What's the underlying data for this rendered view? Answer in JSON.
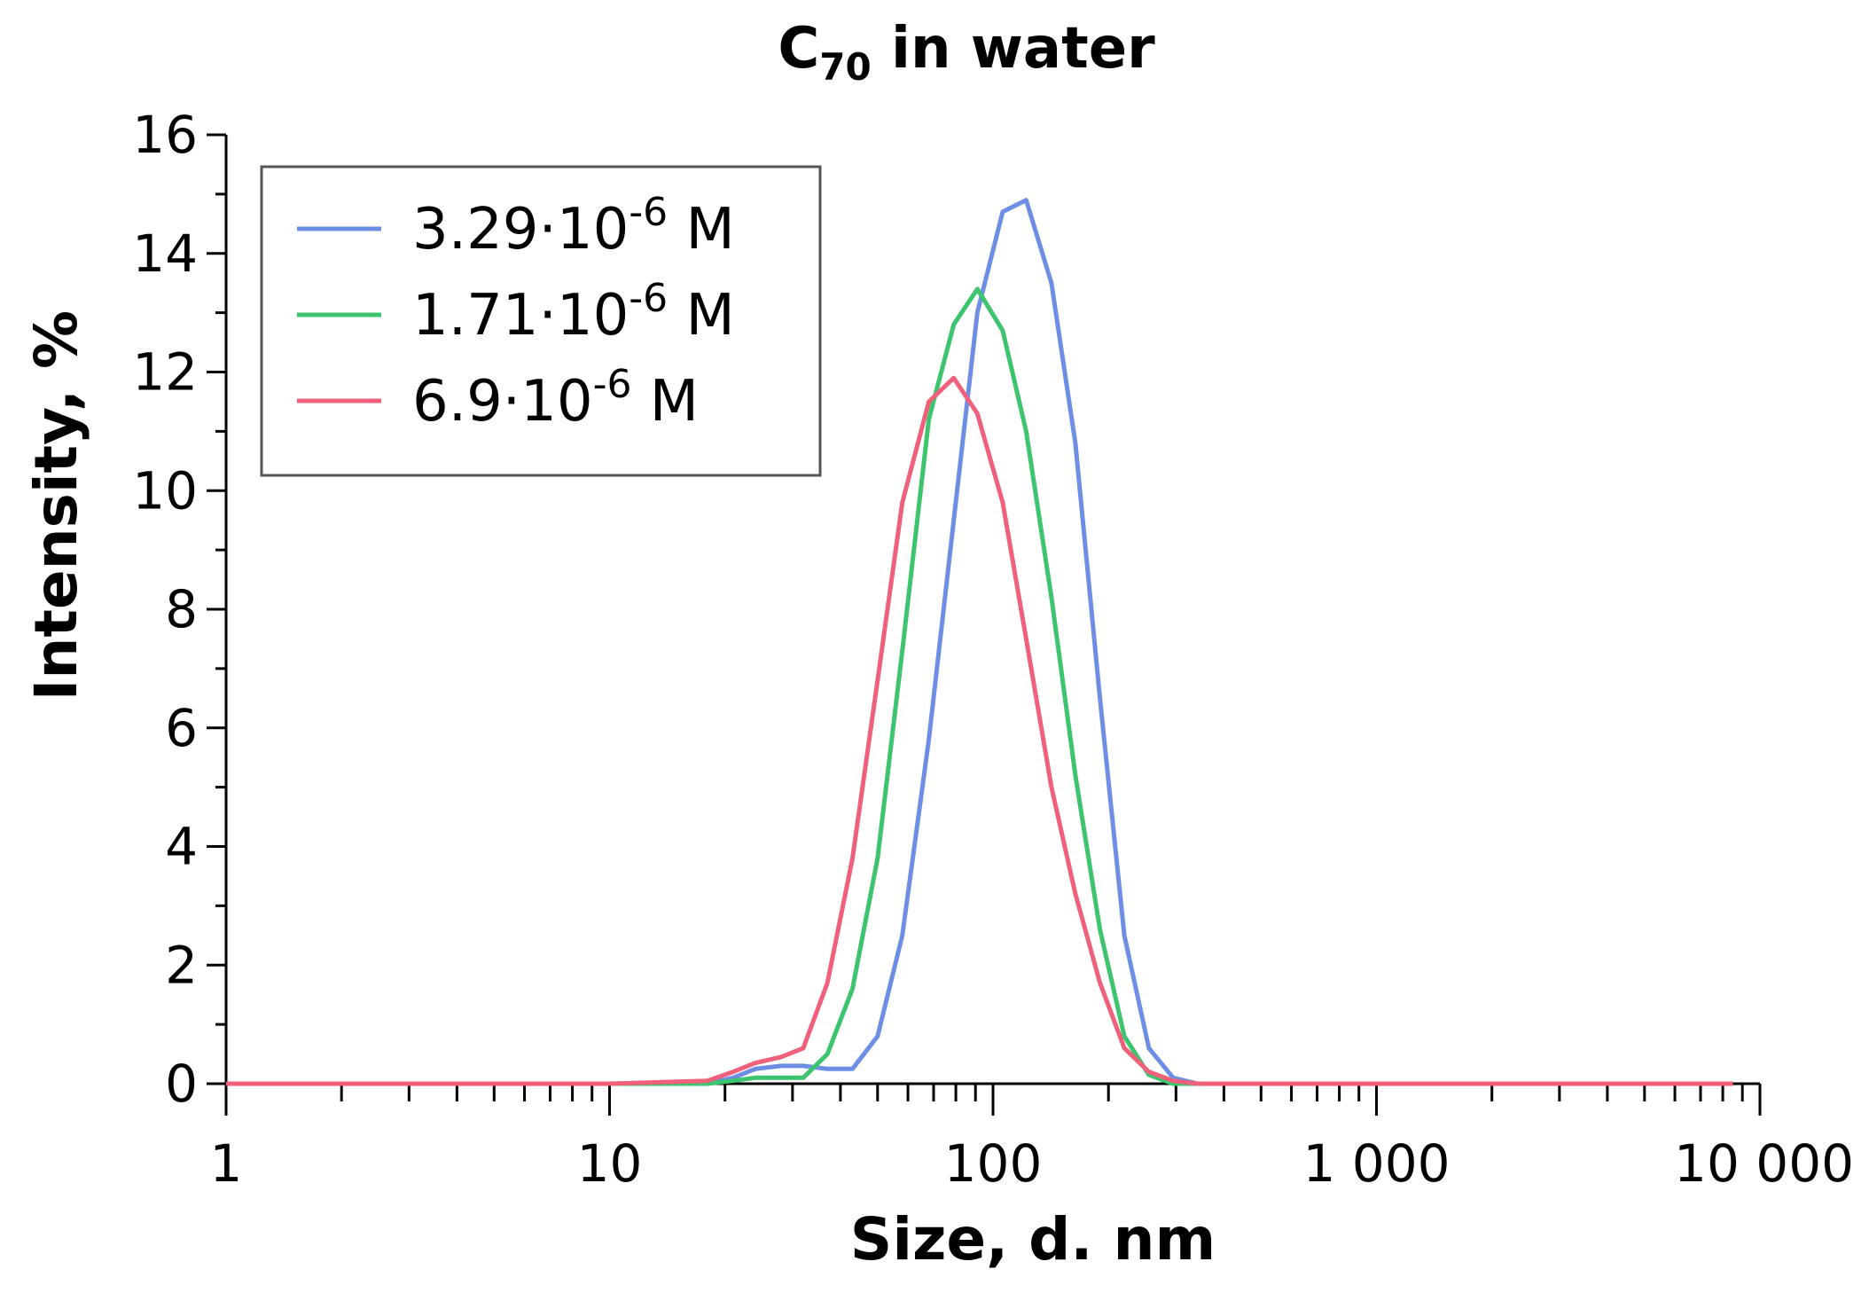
{
  "chart_data": {
    "type": "line",
    "title": "C70 in water",
    "title_main": "C",
    "title_sub": "70",
    "title_rest": " in water",
    "xlabel": "Size, d. nm",
    "ylabel": "Intensity, %",
    "xscale": "log",
    "xlim": [
      1,
      10000
    ],
    "ylim": [
      0,
      16
    ],
    "x_ticks": [
      {
        "value": 1,
        "label": "1"
      },
      {
        "value": 10,
        "label": "10"
      },
      {
        "value": 100,
        "label": "100"
      },
      {
        "value": 1000,
        "label": "1 000"
      },
      {
        "value": 10000,
        "label": "10 000"
      }
    ],
    "y_ticks": [
      {
        "value": 0,
        "label": "0"
      },
      {
        "value": 2,
        "label": "2"
      },
      {
        "value": 4,
        "label": "4"
      },
      {
        "value": 6,
        "label": "6"
      },
      {
        "value": 8,
        "label": "8"
      },
      {
        "value": 10,
        "label": "10"
      },
      {
        "value": 12,
        "label": "12"
      },
      {
        "value": 14,
        "label": "14"
      },
      {
        "value": 16,
        "label": "16"
      }
    ],
    "grid": false,
    "legend_position": "top-left",
    "series": [
      {
        "name": "3.29·10-6 M",
        "name_prefix": "3.29·10",
        "name_exp": "-6",
        "name_suffix": " M",
        "color": "#6d8ee4",
        "x": [
          1,
          10,
          18,
          21,
          24,
          28,
          32,
          37,
          43,
          50,
          58,
          68,
          79,
          91,
          106,
          122,
          142,
          164,
          190,
          220,
          255,
          295,
          342,
          400,
          460,
          540,
          1000,
          8500
        ],
        "y": [
          0,
          0,
          0,
          0.1,
          0.25,
          0.3,
          0.3,
          0.25,
          0.25,
          0.8,
          2.5,
          5.8,
          9.5,
          13.0,
          14.7,
          14.9,
          13.5,
          10.8,
          6.5,
          2.5,
          0.6,
          0.1,
          0,
          0,
          0,
          0,
          0,
          0
        ]
      },
      {
        "name": "1.71·10-6 M",
        "name_prefix": "1.71·10",
        "name_exp": "-6",
        "name_suffix": " M",
        "color": "#3dc46e",
        "x": [
          1,
          10,
          18,
          21,
          24,
          28,
          32,
          37,
          43,
          50,
          58,
          68,
          79,
          91,
          106,
          122,
          142,
          164,
          190,
          220,
          255,
          295,
          342,
          400,
          460,
          540,
          1000,
          8500
        ],
        "y": [
          0,
          0,
          0,
          0.05,
          0.1,
          0.1,
          0.1,
          0.5,
          1.6,
          3.8,
          7.3,
          11.2,
          12.8,
          13.4,
          12.7,
          11.0,
          8.2,
          5.2,
          2.6,
          0.8,
          0.15,
          0,
          0,
          0,
          0,
          0,
          0,
          0
        ]
      },
      {
        "name": "6.9·10-6 M",
        "name_prefix": "6.9·10",
        "name_exp": "-6",
        "name_suffix": " M",
        "color": "#ef607a",
        "x": [
          1,
          10,
          18,
          21,
          24,
          28,
          32,
          37,
          43,
          50,
          58,
          68,
          79,
          91,
          106,
          122,
          142,
          164,
          190,
          220,
          255,
          295,
          342,
          400,
          460,
          540,
          1000,
          8500
        ],
        "y": [
          0,
          0,
          0.05,
          0.2,
          0.35,
          0.45,
          0.6,
          1.7,
          3.8,
          6.8,
          9.8,
          11.5,
          11.9,
          11.3,
          9.8,
          7.5,
          5.0,
          3.2,
          1.7,
          0.6,
          0.2,
          0.05,
          0,
          0,
          0,
          0,
          0,
          0
        ]
      }
    ]
  }
}
